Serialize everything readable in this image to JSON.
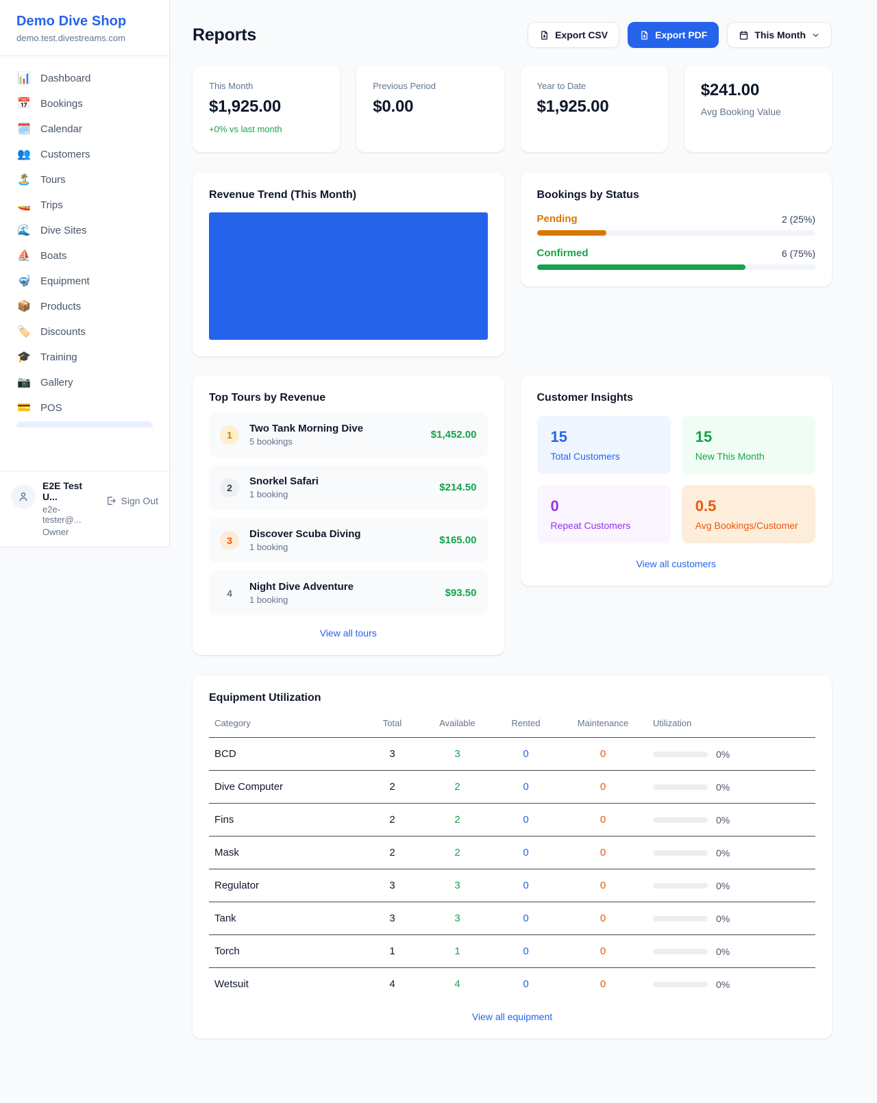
{
  "colors": {
    "accent_blue": "#2563eb",
    "green": "#16a34a",
    "amber": "#d97706",
    "orange": "#ea580c",
    "purple": "#9333ea"
  },
  "sidebar": {
    "brand": {
      "name": "Demo Dive Shop",
      "domain": "demo.test.divestreams.com"
    },
    "items": [
      {
        "name": "dashboard",
        "glyph": "📊",
        "label": "Dashboard"
      },
      {
        "name": "bookings",
        "glyph": "📅",
        "label": "Bookings"
      },
      {
        "name": "calendar",
        "glyph": "🗓️",
        "label": "Calendar"
      },
      {
        "name": "customers",
        "glyph": "👥",
        "label": "Customers"
      },
      {
        "name": "tours",
        "glyph": "🏝️",
        "label": "Tours"
      },
      {
        "name": "trips",
        "glyph": "🚤",
        "label": "Trips"
      },
      {
        "name": "dive-sites",
        "glyph": "🌊",
        "label": "Dive Sites"
      },
      {
        "name": "boats",
        "glyph": "⛵",
        "label": "Boats"
      },
      {
        "name": "equipment",
        "glyph": "🤿",
        "label": "Equipment"
      },
      {
        "name": "products",
        "glyph": "📦",
        "label": "Products"
      },
      {
        "name": "discounts",
        "glyph": "🏷️",
        "label": "Discounts"
      },
      {
        "name": "training",
        "glyph": "🎓",
        "label": "Training"
      },
      {
        "name": "gallery",
        "glyph": "📷",
        "label": "Gallery"
      },
      {
        "name": "pos",
        "glyph": "💳",
        "label": "POS"
      }
    ],
    "user": {
      "name": "E2E Test U...",
      "email": "e2e-tester@...",
      "role": "Owner",
      "sign_out": "Sign Out"
    }
  },
  "header": {
    "title": "Reports",
    "export_csv": "Export CSV",
    "export_pdf": "Export PDF",
    "period": "This Month"
  },
  "stats": [
    {
      "label": "This Month",
      "value": "$1,925.00",
      "delta": "+0% vs last month"
    },
    {
      "label": "Previous Period",
      "value": "$0.00"
    },
    {
      "label": "Year to Date",
      "value": "$1,925.00"
    },
    {
      "label": "Avg Booking Value",
      "value": "$241.00"
    }
  ],
  "revenue_trend": {
    "title": "Revenue Trend (This Month)",
    "chart_data": {
      "type": "bar",
      "categories": [
        "This Month"
      ],
      "values": [
        1925
      ],
      "bar_color": "#2563eb",
      "note": "single full-width bar, no axes shown"
    }
  },
  "bookings_by_status": {
    "title": "Bookings by Status",
    "rows": [
      {
        "label": "Pending",
        "count_text": "2 (25%)",
        "percent": 25
      },
      {
        "label": "Confirmed",
        "count_text": "6 (75%)",
        "percent": 75
      }
    ]
  },
  "top_tours": {
    "title": "Top Tours by Revenue",
    "rows": [
      {
        "rank": "1",
        "name": "Two Tank Morning Dive",
        "sub": "5 bookings",
        "amount": "$1,452.00"
      },
      {
        "rank": "2",
        "name": "Snorkel Safari",
        "sub": "1 booking",
        "amount": "$214.50"
      },
      {
        "rank": "3",
        "name": "Discover Scuba Diving",
        "sub": "1 booking",
        "amount": "$165.00"
      },
      {
        "rank": "4",
        "name": "Night Dive Adventure",
        "sub": "1 booking",
        "amount": "$93.50"
      }
    ],
    "view_all": "View all tours"
  },
  "customer_insights": {
    "title": "Customer Insights",
    "tiles": [
      {
        "value": "15",
        "label": "Total Customers"
      },
      {
        "value": "15",
        "label": "New This Month"
      },
      {
        "value": "0",
        "label": "Repeat Customers"
      },
      {
        "value": "0.5",
        "label": "Avg Bookings/Customer"
      }
    ],
    "view_all": "View all customers"
  },
  "equipment": {
    "title": "Equipment Utilization",
    "columns": [
      "Category",
      "Total",
      "Available",
      "Rented",
      "Maintenance",
      "Utilization"
    ],
    "rows": [
      {
        "category": "BCD",
        "total": "3",
        "available": "3",
        "rented": "0",
        "maintenance": "0",
        "utilization": "0%",
        "percent": 0
      },
      {
        "category": "Dive Computer",
        "total": "2",
        "available": "2",
        "rented": "0",
        "maintenance": "0",
        "utilization": "0%",
        "percent": 0
      },
      {
        "category": "Fins",
        "total": "2",
        "available": "2",
        "rented": "0",
        "maintenance": "0",
        "utilization": "0%",
        "percent": 0
      },
      {
        "category": "Mask",
        "total": "2",
        "available": "2",
        "rented": "0",
        "maintenance": "0",
        "utilization": "0%",
        "percent": 0
      },
      {
        "category": "Regulator",
        "total": "3",
        "available": "3",
        "rented": "0",
        "maintenance": "0",
        "utilization": "0%",
        "percent": 0
      },
      {
        "category": "Tank",
        "total": "3",
        "available": "3",
        "rented": "0",
        "maintenance": "0",
        "utilization": "0%",
        "percent": 0
      },
      {
        "category": "Torch",
        "total": "1",
        "available": "1",
        "rented": "0",
        "maintenance": "0",
        "utilization": "0%",
        "percent": 0
      },
      {
        "category": "Wetsuit",
        "total": "4",
        "available": "4",
        "rented": "0",
        "maintenance": "0",
        "utilization": "0%",
        "percent": 0
      }
    ],
    "view_all": "View all equipment"
  }
}
